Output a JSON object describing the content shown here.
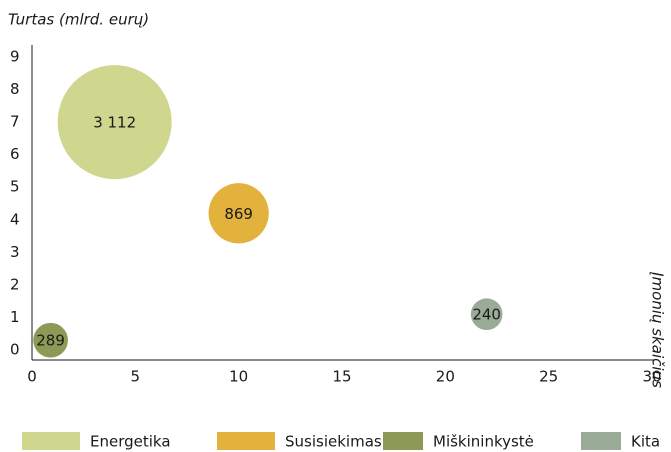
{
  "chart_data": {
    "type": "bubble",
    "y_label": "Turtas (mlrd. eurų)",
    "size_label": "Įmonių skaičius",
    "xlim": [
      0,
      30
    ],
    "xticks": [
      0,
      5,
      10,
      15,
      20,
      25,
      30
    ],
    "ylim": [
      0,
      9
    ],
    "yticks": [
      0,
      1,
      2,
      3,
      4,
      5,
      6,
      7,
      8,
      9
    ],
    "legend": "bottom",
    "series": [
      {
        "name": "Energetika",
        "color": "#cfd68e",
        "x": [
          4
        ],
        "values": [
          7
        ],
        "sizes": [
          3112
        ],
        "value_labels": [
          "3 112"
        ]
      },
      {
        "name": "Susisiekimas",
        "color": "#e3b23c",
        "x": [
          10
        ],
        "values": [
          4.2
        ],
        "sizes": [
          869
        ]
      },
      {
        "name": "Miškininkystė",
        "color": "#8c9a56",
        "x": [
          0.9
        ],
        "values": [
          0.3
        ],
        "sizes": [
          289
        ]
      },
      {
        "name": "Kita",
        "color": "#9aab98",
        "x": [
          22
        ],
        "values": [
          1.1
        ],
        "sizes": [
          240
        ]
      }
    ]
  }
}
